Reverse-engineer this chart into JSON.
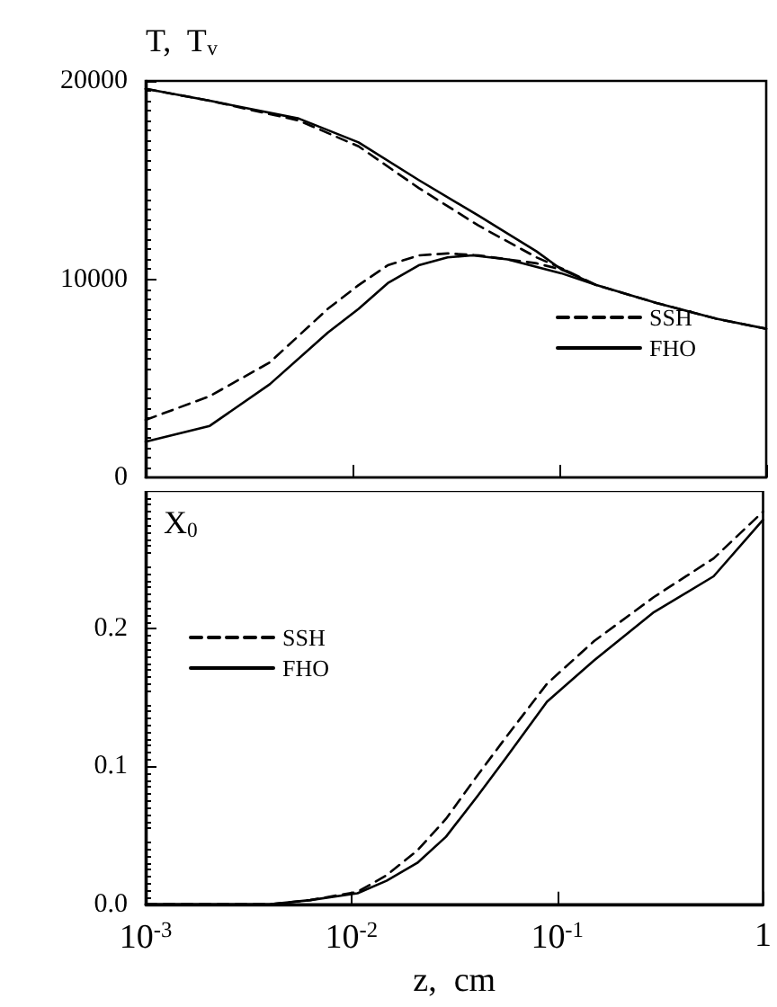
{
  "chart_data": [
    {
      "type": "line",
      "ylabel": "T,  T$_{v}$",
      "xlim": [
        0.001,
        1
      ],
      "xticks": [
        0.001,
        0.01,
        0.1,
        1
      ],
      "log": "x",
      "ylim": [
        0,
        20000
      ],
      "yticks": [
        0,
        10000,
        20000
      ],
      "tick_labels": "y",
      "grid": false,
      "legend": "right",
      "marker": "none",
      "series": [
        {
          "name": "SSH",
          "color": "#000000",
          "line_style": "dashed",
          "x": [
            0.001,
            0.00204,
            0.0055,
            0.0107,
            0.0209,
            0.0407,
            0.0776,
            0.11,
            0.151,
            0.295,
            0.575,
            1
          ],
          "values": [
            19600,
            19000,
            18000,
            16700,
            14600,
            12700,
            11100,
            10400,
            9700,
            8800,
            8000,
            7500
          ]
        },
        {
          "name": "FHO",
          "color": "#000000",
          "line_style": "solid",
          "x": [
            0.001,
            0.00204,
            0.0055,
            0.0107,
            0.0209,
            0.0407,
            0.0776,
            0.102,
            0.151,
            0.295,
            0.575,
            1
          ],
          "values": [
            19600,
            19000,
            18100,
            16900,
            15000,
            13200,
            11400,
            10500,
            9700,
            8800,
            8000,
            7500
          ]
        },
        {
          "color": "#000000",
          "line_style": "dashed",
          "x": [
            0.001,
            0.00204,
            0.00398,
            0.00759,
            0.0107,
            0.0148,
            0.0209,
            0.0288,
            0.0407,
            0.0776,
            0.11
          ],
          "values": [
            2900,
            4100,
            5800,
            8500,
            9700,
            10700,
            11200,
            11300,
            11200,
            10800,
            10400
          ]
        },
        {
          "color": "#000000",
          "line_style": "solid",
          "x": [
            0.001,
            0.00204,
            0.00398,
            0.00759,
            0.0107,
            0.0148,
            0.0209,
            0.0288,
            0.038,
            0.0562,
            0.102,
            0.151
          ],
          "values": [
            1800,
            2600,
            4700,
            7300,
            8500,
            9800,
            10700,
            11100,
            11200,
            11000,
            10300,
            9700
          ]
        }
      ]
    },
    {
      "type": "line",
      "ylabel": "X$_{0}$",
      "xlabel": "z,  cm",
      "xlim": [
        0.001,
        1
      ],
      "xticks": [
        {
          "value": 0.001,
          "label": "10$^{-3}$"
        },
        {
          "value": 0.01,
          "label": "10$^{-2}$"
        },
        {
          "value": 0.1,
          "label": "10$^{-1}$"
        },
        1
      ],
      "log": "x",
      "ylim": [
        0,
        0.3
      ],
      "yticks": [
        {
          "value": 0,
          "label": "0.0"
        },
        0.1,
        0.2
      ],
      "grid": false,
      "legend": "top left",
      "marker": "none",
      "series": [
        {
          "name": "SSH",
          "color": "#000000",
          "line_style": "dashed",
          "x": [
            0.001,
            0.00398,
            0.0063,
            0.0107,
            0.0148,
            0.0209,
            0.0288,
            0.0407,
            0.0562,
            0.0891,
            0.151,
            0.295,
            0.575,
            1
          ],
          "values": [
            0,
            0,
            0.003,
            0.009,
            0.021,
            0.039,
            0.062,
            0.093,
            0.121,
            0.16,
            0.191,
            0.223,
            0.251,
            0.285
          ]
        },
        {
          "name": "FHO",
          "color": "#000000",
          "line_style": "solid",
          "x": [
            0.001,
            0.00398,
            0.0063,
            0.0107,
            0.0148,
            0.0209,
            0.0288,
            0.0407,
            0.0562,
            0.0891,
            0.151,
            0.295,
            0.575,
            1
          ],
          "values": [
            0,
            0,
            0.003,
            0.008,
            0.017,
            0.03,
            0.049,
            0.078,
            0.106,
            0.147,
            0.177,
            0.212,
            0.238,
            0.279
          ]
        }
      ]
    }
  ]
}
